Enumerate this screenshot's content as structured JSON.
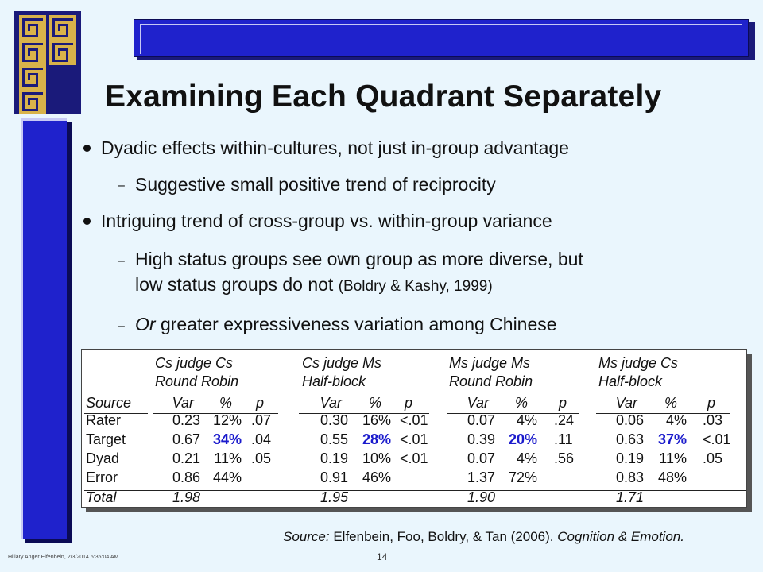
{
  "slide": {
    "title": "Examining Each Quadrant Separately",
    "bullets": [
      {
        "level": 1,
        "text": "Dyadic effects within-cultures, not just in-group advantage"
      },
      {
        "level": 2,
        "text": "Suggestive small positive trend of reciprocity"
      },
      {
        "level": 1,
        "text": "Intriguing trend of cross-group vs. within-group variance"
      },
      {
        "level": 2,
        "line1": "High status groups see own group as more diverse, but",
        "line2": "low status groups do not",
        "cite": "(Boldry & Kashy, 1999)"
      },
      {
        "level": 2,
        "italic_prefix": "Or",
        "text": "greater expressiveness variation among Chinese"
      }
    ],
    "dash_glyph": "–",
    "source_label": "Source:",
    "source_text": "Elfenbein, Foo, Boldry, & Tan (2006).",
    "source_journal": "Cognition & Emotion.",
    "footer": "Hillary Anger Elfenbein,  2/3/2014  5:35:04  AM",
    "page_number": "14",
    "colors": {
      "background": "#eaf6fd",
      "accent_blue": "#1f22cc",
      "highlight": "#1a1acc",
      "logo_gold": "#d8b24a"
    }
  },
  "table": {
    "source_header": "Source",
    "col_heads": [
      "Var",
      "%",
      "p"
    ],
    "groups": [
      {
        "line1": "Cs judge Cs",
        "line2": "Round Robin"
      },
      {
        "line1": "Cs judge Ms",
        "line2": "Half-block"
      },
      {
        "line1": "Ms judge Ms",
        "line2": "Round Robin"
      },
      {
        "line1": "Ms judge Cs",
        "line2": "Half-block"
      }
    ],
    "rows": [
      {
        "label": "Rater",
        "cells": [
          [
            "0.23",
            "12%",
            ".07"
          ],
          [
            "0.30",
            "16%",
            "<.01"
          ],
          [
            "0.07",
            "4%",
            ".24"
          ],
          [
            "0.06",
            "4%",
            ".03"
          ]
        ]
      },
      {
        "label": "Target",
        "cells": [
          [
            "0.67",
            "34%",
            ".04"
          ],
          [
            "0.55",
            "28%",
            "<.01"
          ],
          [
            "0.39",
            "20%",
            ".11"
          ],
          [
            "0.63",
            "37%",
            "<.01"
          ]
        ]
      },
      {
        "label": "Dyad",
        "cells": [
          [
            "0.21",
            "11%",
            ".05"
          ],
          [
            "0.19",
            "10%",
            "<.01"
          ],
          [
            "0.07",
            "4%",
            ".56"
          ],
          [
            "0.19",
            "11%",
            ".05"
          ]
        ]
      },
      {
        "label": "Error",
        "cells": [
          [
            "0.86",
            "44%",
            ""
          ],
          [
            "0.91",
            "46%",
            ""
          ],
          [
            "1.37",
            "72%",
            ""
          ],
          [
            "0.83",
            "48%",
            ""
          ]
        ]
      },
      {
        "label": "Total",
        "cells": [
          [
            "1.98",
            "",
            ""
          ],
          [
            "1.95",
            "",
            ""
          ],
          [
            "1.90",
            "",
            ""
          ],
          [
            "1.71",
            "",
            ""
          ]
        ]
      }
    ]
  }
}
